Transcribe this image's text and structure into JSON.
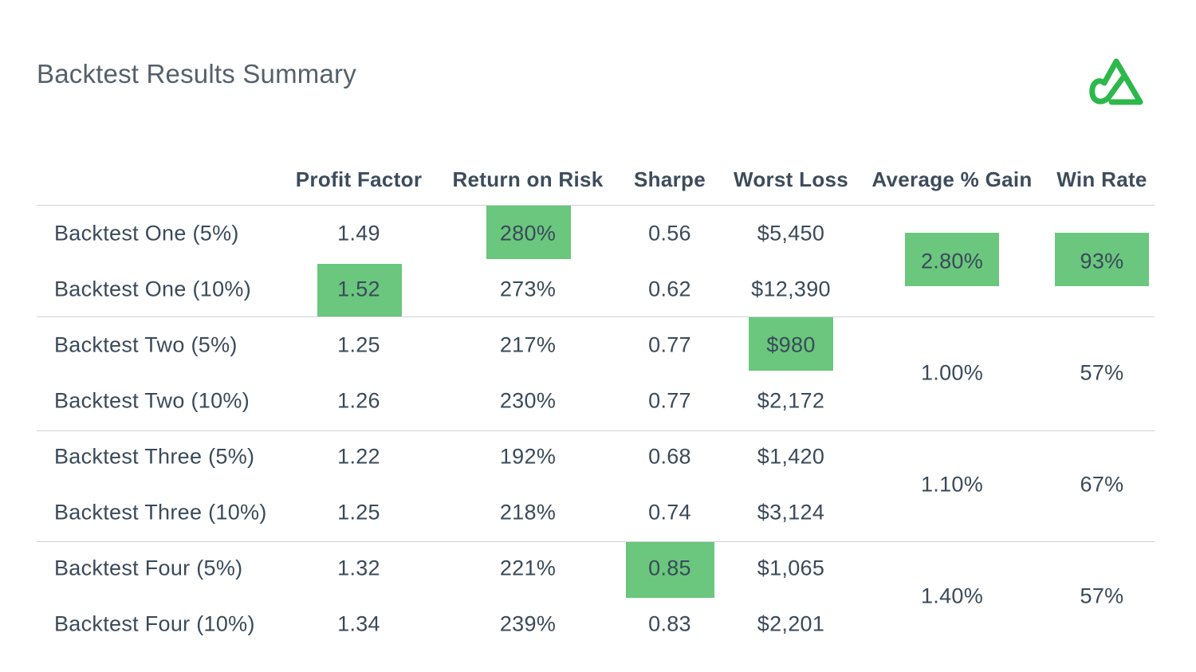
{
  "title": "Backtest Results Summary",
  "colors": {
    "highlight": "#6ac77d",
    "logo": "#2db84b",
    "text": "#3a4a5a",
    "rule": "#cfd3d7"
  },
  "logo_icon": "brand-logo-icon",
  "chart_data": {
    "type": "table",
    "title": "Backtest Results Summary",
    "columns": [
      "Profit Factor",
      "Return on Risk",
      "Sharpe",
      "Worst Loss",
      "Average % Gain",
      "Win Rate"
    ],
    "rows": [
      {
        "label": "Backtest One (5%)",
        "profit_factor": "1.49",
        "return_on_risk": "280%",
        "sharpe": "0.56",
        "worst_loss": "$5,450"
      },
      {
        "label": "Backtest One (10%)",
        "profit_factor": "1.52",
        "return_on_risk": "273%",
        "sharpe": "0.62",
        "worst_loss": "$12,390"
      },
      {
        "label": "Backtest Two (5%)",
        "profit_factor": "1.25",
        "return_on_risk": "217%",
        "sharpe": "0.77",
        "worst_loss": "$980"
      },
      {
        "label": "Backtest Two (10%)",
        "profit_factor": "1.26",
        "return_on_risk": "230%",
        "sharpe": "0.77",
        "worst_loss": "$2,172"
      },
      {
        "label": "Backtest Three (5%)",
        "profit_factor": "1.22",
        "return_on_risk": "192%",
        "sharpe": "0.68",
        "worst_loss": "$1,420"
      },
      {
        "label": "Backtest Three (10%)",
        "profit_factor": "1.25",
        "return_on_risk": "218%",
        "sharpe": "0.74",
        "worst_loss": "$3,124"
      },
      {
        "label": "Backtest Four (5%)",
        "profit_factor": "1.32",
        "return_on_risk": "221%",
        "sharpe": "0.85",
        "worst_loss": "$1,065"
      },
      {
        "label": "Backtest Four (10%)",
        "profit_factor": "1.34",
        "return_on_risk": "239%",
        "sharpe": "0.83",
        "worst_loss": "$2,201"
      }
    ],
    "groups": [
      {
        "name": "Backtest One",
        "average_gain": "2.80%",
        "win_rate": "93%"
      },
      {
        "name": "Backtest Two",
        "average_gain": "1.00%",
        "win_rate": "57%"
      },
      {
        "name": "Backtest Three",
        "average_gain": "1.10%",
        "win_rate": "67%"
      },
      {
        "name": "Backtest Four",
        "average_gain": "1.40%",
        "win_rate": "57%"
      }
    ],
    "best_values": {
      "profit_factor": "1.52",
      "return_on_risk": "280%",
      "sharpe": "0.85",
      "worst_loss": "$980",
      "average_gain": "2.80%",
      "win_rate": "93%"
    }
  }
}
